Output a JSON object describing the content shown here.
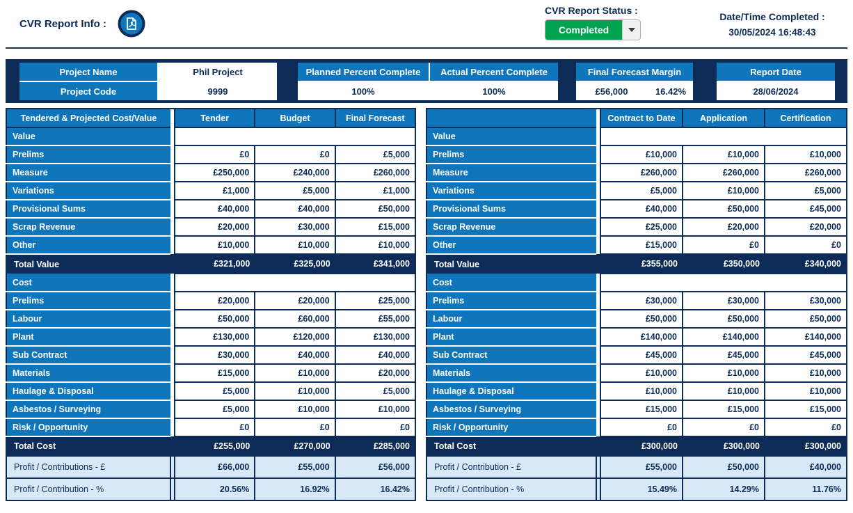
{
  "topbar": {
    "report_info_label": "CVR Report Info :",
    "report_status_label": "CVR Report Status :",
    "status_value": "Completed",
    "datetime_label": "Date/Time Completed :",
    "datetime_value": "30/05/2024 16:48:43"
  },
  "icons": {
    "pdf_export": "pdf-document-icon",
    "status_dropdown_arrow": "caret-down-icon"
  },
  "colors": {
    "accent_blue": "#0f76bc",
    "navy": "#0d2b57",
    "light_blue": "#d9e8f7",
    "status_green": "#00a24f"
  },
  "summary": {
    "project_name_label": "Project Name",
    "project_name_value": "Phil Project",
    "project_code_label": "Project Code",
    "project_code_value": "9999",
    "planned_percent_label": "Planned Percent Complete",
    "planned_percent_value": "100%",
    "actual_percent_label": "Actual Percent Complete",
    "actual_percent_value": "100%",
    "final_forecast_margin_label": "Final Forecast Margin",
    "final_forecast_margin_value": "£56,000",
    "final_forecast_margin_percent": "16.42%",
    "report_date_label": "Report Date",
    "report_date_value": "28/06/2024"
  },
  "tables": [
    {
      "id": "left",
      "header": [
        "Tendered & Projected Cost/Value",
        "Tender",
        "Budget",
        "Final Forecast"
      ],
      "rows": [
        {
          "type": "section",
          "label": "Value"
        },
        {
          "type": "data",
          "label": "Prelims",
          "values": [
            "£0",
            "£0",
            "£5,000"
          ]
        },
        {
          "type": "data",
          "label": "Measure",
          "values": [
            "£250,000",
            "£240,000",
            "£260,000"
          ]
        },
        {
          "type": "data",
          "label": "Variations",
          "values": [
            "£1,000",
            "£5,000",
            "£1,000"
          ]
        },
        {
          "type": "data",
          "label": "Provisional Sums",
          "values": [
            "£40,000",
            "£40,000",
            "£50,000"
          ]
        },
        {
          "type": "data",
          "label": "Scrap Revenue",
          "values": [
            "£20,000",
            "£30,000",
            "£15,000"
          ]
        },
        {
          "type": "data",
          "label": "Other",
          "values": [
            "£10,000",
            "£10,000",
            "£10,000"
          ]
        },
        {
          "type": "total",
          "label": "Total Value",
          "values": [
            "£321,000",
            "£325,000",
            "£341,000"
          ]
        },
        {
          "type": "section",
          "label": "Cost"
        },
        {
          "type": "data",
          "label": "Prelims",
          "values": [
            "£20,000",
            "£20,000",
            "£25,000"
          ]
        },
        {
          "type": "data",
          "label": "Labour",
          "values": [
            "£50,000",
            "£60,000",
            "£55,000"
          ]
        },
        {
          "type": "data",
          "label": "Plant",
          "values": [
            "£130,000",
            "£120,000",
            "£130,000"
          ]
        },
        {
          "type": "data",
          "label": "Sub Contract",
          "values": [
            "£30,000",
            "£40,000",
            "£40,000"
          ]
        },
        {
          "type": "data",
          "label": "Materials",
          "values": [
            "£15,000",
            "£10,000",
            "£20,000"
          ]
        },
        {
          "type": "data",
          "label": "Haulage & Disposal",
          "values": [
            "£5,000",
            "£10,000",
            "£5,000"
          ]
        },
        {
          "type": "data",
          "label": "Asbestos / Surveying",
          "values": [
            "£5,000",
            "£10,000",
            "£10,000"
          ]
        },
        {
          "type": "data",
          "label": "Risk / Opportunity",
          "values": [
            "£0",
            "£0",
            "£0"
          ]
        },
        {
          "type": "total",
          "label": "Total Cost",
          "values": [
            "£255,000",
            "£270,000",
            "£285,000"
          ]
        },
        {
          "type": "profit",
          "label": "Profit / Contributions - £",
          "values": [
            "£66,000",
            "£55,000",
            "£56,000"
          ]
        },
        {
          "type": "profit",
          "label": "Profit / Contribution - %",
          "values": [
            "20.56%",
            "16.92%",
            "16.42%"
          ]
        }
      ]
    },
    {
      "id": "right",
      "header": [
        "",
        "Contract to Date",
        "Application",
        "Certification"
      ],
      "rows": [
        {
          "type": "section",
          "label": "Value"
        },
        {
          "type": "data",
          "label": "Prelims",
          "values": [
            "£10,000",
            "£10,000",
            "£10,000"
          ]
        },
        {
          "type": "data",
          "label": "Measure",
          "values": [
            "£260,000",
            "£260,000",
            "£260,000"
          ]
        },
        {
          "type": "data",
          "label": "Variations",
          "values": [
            "£5,000",
            "£10,000",
            "£5,000"
          ]
        },
        {
          "type": "data",
          "label": "Provisional Sums",
          "values": [
            "£40,000",
            "£50,000",
            "£45,000"
          ]
        },
        {
          "type": "data",
          "label": "Scrap Revenue",
          "values": [
            "£25,000",
            "£20,000",
            "£20,000"
          ]
        },
        {
          "type": "data",
          "label": "Other",
          "values": [
            "£15,000",
            "£0",
            "£0"
          ]
        },
        {
          "type": "total",
          "label": "Total Value",
          "values": [
            "£355,000",
            "£350,000",
            "£340,000"
          ]
        },
        {
          "type": "section",
          "label": "Cost"
        },
        {
          "type": "data",
          "label": "Prelims",
          "values": [
            "£30,000",
            "£30,000",
            "£30,000"
          ]
        },
        {
          "type": "data",
          "label": "Labour",
          "values": [
            "£50,000",
            "£50,000",
            "£50,000"
          ]
        },
        {
          "type": "data",
          "label": "Plant",
          "values": [
            "£140,000",
            "£140,000",
            "£140,000"
          ]
        },
        {
          "type": "data",
          "label": "Sub Contract",
          "values": [
            "£45,000",
            "£45,000",
            "£45,000"
          ]
        },
        {
          "type": "data",
          "label": "Materials",
          "values": [
            "£10,000",
            "£10,000",
            "£10,000"
          ]
        },
        {
          "type": "data",
          "label": "Haulage & Disposal",
          "values": [
            "£10,000",
            "£10,000",
            "£10,000"
          ]
        },
        {
          "type": "data",
          "label": "Asbestos / Surveying",
          "values": [
            "£15,000",
            "£15,000",
            "£15,000"
          ]
        },
        {
          "type": "data",
          "label": "Risk / Opportunity",
          "values": [
            "£0",
            "£0",
            "£0"
          ]
        },
        {
          "type": "total",
          "label": "Total Cost",
          "values": [
            "£300,000",
            "£300,000",
            "£300,000"
          ]
        },
        {
          "type": "profit",
          "label": "Profit / Contribution - £",
          "values": [
            "£55,000",
            "£50,000",
            "£40,000"
          ]
        },
        {
          "type": "profit",
          "label": "Profit / Contribution - %",
          "values": [
            "15.49%",
            "14.29%",
            "11.76%"
          ]
        }
      ]
    }
  ]
}
